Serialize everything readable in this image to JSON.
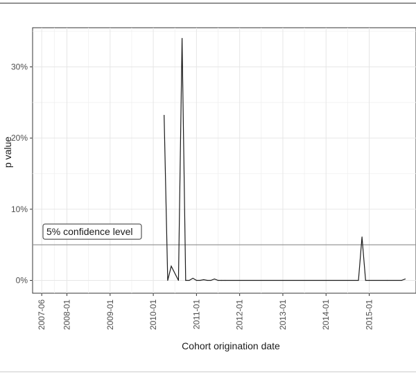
{
  "chart_data": {
    "type": "line",
    "xlabel": "Cohort origination date",
    "ylabel": "p value",
    "x_ticks": [
      "2007-06",
      "2008-01",
      "2009-01",
      "2010-01",
      "2011-01",
      "2012-01",
      "2013-01",
      "2014-01",
      "2015-01"
    ],
    "y_ticks": [
      {
        "value": 0,
        "label": "0%"
      },
      {
        "value": 10,
        "label": "10%"
      },
      {
        "value": 20,
        "label": "20%"
      },
      {
        "value": 30,
        "label": "30%"
      }
    ],
    "xlim": [
      "2007-03-15",
      "2016-02-01"
    ],
    "ylim": [
      -1.8,
      35.5
    ],
    "grid": true,
    "reference_line": {
      "value": 5,
      "label": "5% confidence level"
    },
    "series": [
      {
        "color": "#1a1a1a",
        "points": [
          [
            "2010-04-01",
            23.2
          ],
          [
            "2010-05-01",
            0
          ],
          [
            "2010-06-01",
            2.0
          ],
          [
            "2010-08-01",
            0
          ],
          [
            "2010-09-01",
            34.0
          ],
          [
            "2010-10-01",
            0
          ],
          [
            "2010-11-01",
            0
          ],
          [
            "2010-12-01",
            0.3
          ],
          [
            "2011-01-01",
            0
          ],
          [
            "2011-02-01",
            0
          ],
          [
            "2011-03-01",
            0.1
          ],
          [
            "2011-04-01",
            0
          ],
          [
            "2011-05-01",
            0
          ],
          [
            "2011-06-01",
            0.2
          ],
          [
            "2011-07-01",
            0
          ],
          [
            "2011-08-01",
            0
          ],
          [
            "2011-09-01",
            0
          ],
          [
            "2014-10-01",
            0
          ],
          [
            "2014-11-01",
            6.1
          ],
          [
            "2014-12-01",
            0
          ],
          [
            "2015-01-01",
            0
          ],
          [
            "2015-06-01",
            0
          ],
          [
            "2015-10-01",
            0
          ],
          [
            "2015-11-01",
            0.2
          ]
        ]
      }
    ]
  }
}
